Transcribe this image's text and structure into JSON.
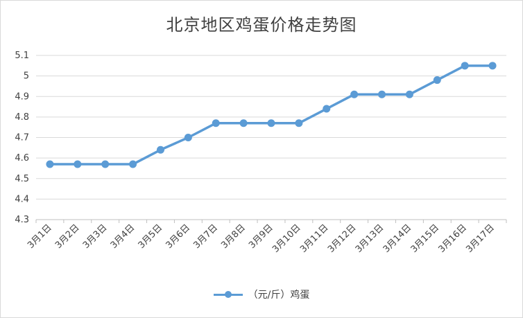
{
  "chart_data": {
    "type": "line",
    "title": "北京地区鸡蛋价格走势图",
    "categories": [
      "3月1日",
      "3月2日",
      "3月3日",
      "3月4日",
      "3月5日",
      "3月6日",
      "3月7日",
      "3月8日",
      "3月9日",
      "3月10日",
      "3月11日",
      "3月12日",
      "3月13日",
      "3月14日",
      "3月15日",
      "3月16日",
      "3月17日"
    ],
    "series": [
      {
        "name": "（元/斤）鸡蛋",
        "color": "#5b9bd5",
        "values": [
          4.57,
          4.57,
          4.57,
          4.57,
          4.64,
          4.7,
          4.77,
          4.77,
          4.77,
          4.77,
          4.84,
          4.91,
          4.91,
          4.91,
          4.98,
          5.05,
          5.05
        ]
      }
    ],
    "yticks": [
      "4.3",
      "4.4",
      "4.5",
      "4.6",
      "4.7",
      "4.8",
      "4.9",
      "5",
      "5.1"
    ],
    "ylim": [
      4.3,
      5.1
    ],
    "xlabel": "",
    "ylabel": "",
    "grid": true,
    "legend_position": "bottom"
  }
}
